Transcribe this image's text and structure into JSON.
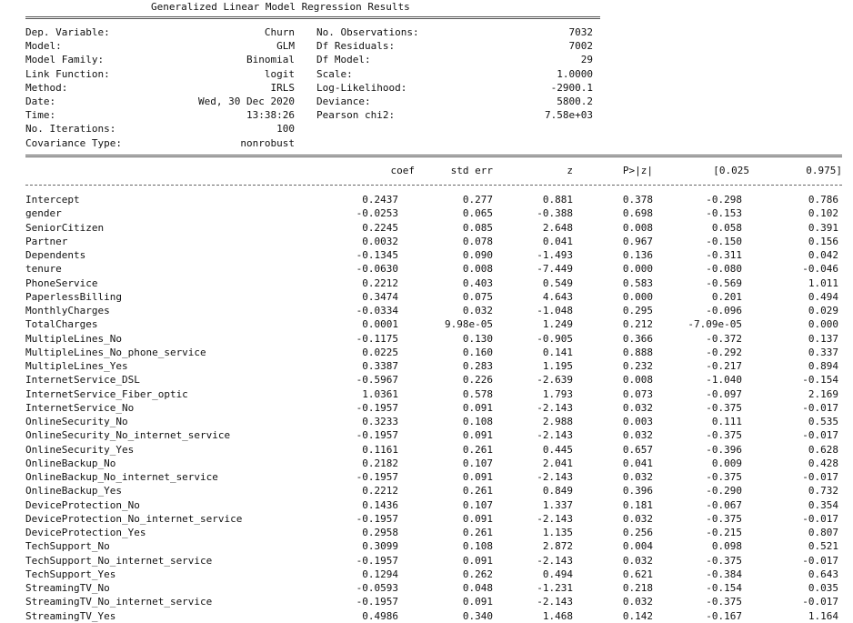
{
  "title": "Generalized Linear Model Regression Results",
  "summary": [
    {
      "l1": "Dep. Variable:",
      "v1": "Churn",
      "l2": "No. Observations:",
      "v2": "7032"
    },
    {
      "l1": "Model:",
      "v1": "GLM",
      "l2": "Df Residuals:",
      "v2": "7002"
    },
    {
      "l1": "Model Family:",
      "v1": "Binomial",
      "l2": "Df Model:",
      "v2": "29"
    },
    {
      "l1": "Link Function:",
      "v1": "logit",
      "l2": "Scale:",
      "v2": "1.0000"
    },
    {
      "l1": "Method:",
      "v1": "IRLS",
      "l2": "Log-Likelihood:",
      "v2": "-2900.1"
    },
    {
      "l1": "Date:",
      "v1": "Wed, 30 Dec 2020",
      "l2": "Deviance:",
      "v2": "5800.2"
    },
    {
      "l1": "Time:",
      "v1": "13:38:26",
      "l2": "Pearson chi2:",
      "v2": "7.58e+03"
    },
    {
      "l1": "No. Iterations:",
      "v1": "100",
      "l2": "",
      "v2": ""
    },
    {
      "l1": "Covariance Type:",
      "v1": "nonrobust",
      "l2": "",
      "v2": ""
    }
  ],
  "columns": [
    "coef",
    "std err",
    "z",
    "P>|z|",
    "[0.025",
    "0.975]"
  ],
  "rows": [
    [
      "Intercept",
      "0.2437",
      "0.277",
      "0.881",
      "0.378",
      "-0.298",
      "0.786"
    ],
    [
      "gender",
      "-0.0253",
      "0.065",
      "-0.388",
      "0.698",
      "-0.153",
      "0.102"
    ],
    [
      "SeniorCitizen",
      "0.2245",
      "0.085",
      "2.648",
      "0.008",
      "0.058",
      "0.391"
    ],
    [
      "Partner",
      "0.0032",
      "0.078",
      "0.041",
      "0.967",
      "-0.150",
      "0.156"
    ],
    [
      "Dependents",
      "-0.1345",
      "0.090",
      "-1.493",
      "0.136",
      "-0.311",
      "0.042"
    ],
    [
      "tenure",
      "-0.0630",
      "0.008",
      "-7.449",
      "0.000",
      "-0.080",
      "-0.046"
    ],
    [
      "PhoneService",
      "0.2212",
      "0.403",
      "0.549",
      "0.583",
      "-0.569",
      "1.011"
    ],
    [
      "PaperlessBilling",
      "0.3474",
      "0.075",
      "4.643",
      "0.000",
      "0.201",
      "0.494"
    ],
    [
      "MonthlyCharges",
      "-0.0334",
      "0.032",
      "-1.048",
      "0.295",
      "-0.096",
      "0.029"
    ],
    [
      "TotalCharges",
      "0.0001",
      "9.98e-05",
      "1.249",
      "0.212",
      "-7.09e-05",
      "0.000"
    ],
    [
      "MultipleLines_No",
      "-0.1175",
      "0.130",
      "-0.905",
      "0.366",
      "-0.372",
      "0.137"
    ],
    [
      "MultipleLines_No_phone_service",
      "0.0225",
      "0.160",
      "0.141",
      "0.888",
      "-0.292",
      "0.337"
    ],
    [
      "MultipleLines_Yes",
      "0.3387",
      "0.283",
      "1.195",
      "0.232",
      "-0.217",
      "0.894"
    ],
    [
      "InternetService_DSL",
      "-0.5967",
      "0.226",
      "-2.639",
      "0.008",
      "-1.040",
      "-0.154"
    ],
    [
      "InternetService_Fiber_optic",
      "1.0361",
      "0.578",
      "1.793",
      "0.073",
      "-0.097",
      "2.169"
    ],
    [
      "InternetService_No",
      "-0.1957",
      "0.091",
      "-2.143",
      "0.032",
      "-0.375",
      "-0.017"
    ],
    [
      "OnlineSecurity_No",
      "0.3233",
      "0.108",
      "2.988",
      "0.003",
      "0.111",
      "0.535"
    ],
    [
      "OnlineSecurity_No_internet_service",
      "-0.1957",
      "0.091",
      "-2.143",
      "0.032",
      "-0.375",
      "-0.017"
    ],
    [
      "OnlineSecurity_Yes",
      "0.1161",
      "0.261",
      "0.445",
      "0.657",
      "-0.396",
      "0.628"
    ],
    [
      "OnlineBackup_No",
      "0.2182",
      "0.107",
      "2.041",
      "0.041",
      "0.009",
      "0.428"
    ],
    [
      "OnlineBackup_No_internet_service",
      "-0.1957",
      "0.091",
      "-2.143",
      "0.032",
      "-0.375",
      "-0.017"
    ],
    [
      "OnlineBackup_Yes",
      "0.2212",
      "0.261",
      "0.849",
      "0.396",
      "-0.290",
      "0.732"
    ],
    [
      "DeviceProtection_No",
      "0.1436",
      "0.107",
      "1.337",
      "0.181",
      "-0.067",
      "0.354"
    ],
    [
      "DeviceProtection_No_internet_service",
      "-0.1957",
      "0.091",
      "-2.143",
      "0.032",
      "-0.375",
      "-0.017"
    ],
    [
      "DeviceProtection_Yes",
      "0.2958",
      "0.261",
      "1.135",
      "0.256",
      "-0.215",
      "0.807"
    ],
    [
      "TechSupport_No",
      "0.3099",
      "0.108",
      "2.872",
      "0.004",
      "0.098",
      "0.521"
    ],
    [
      "TechSupport_No_internet_service",
      "-0.1957",
      "0.091",
      "-2.143",
      "0.032",
      "-0.375",
      "-0.017"
    ],
    [
      "TechSupport_Yes",
      "0.1294",
      "0.262",
      "0.494",
      "0.621",
      "-0.384",
      "0.643"
    ],
    [
      "StreamingTV_No",
      "-0.0593",
      "0.048",
      "-1.231",
      "0.218",
      "-0.154",
      "0.035"
    ],
    [
      "StreamingTV_No_internet_service",
      "-0.1957",
      "0.091",
      "-2.143",
      "0.032",
      "-0.375",
      "-0.017"
    ],
    [
      "StreamingTV_Yes",
      "0.4986",
      "0.340",
      "1.468",
      "0.142",
      "-0.167",
      "1.164"
    ]
  ]
}
